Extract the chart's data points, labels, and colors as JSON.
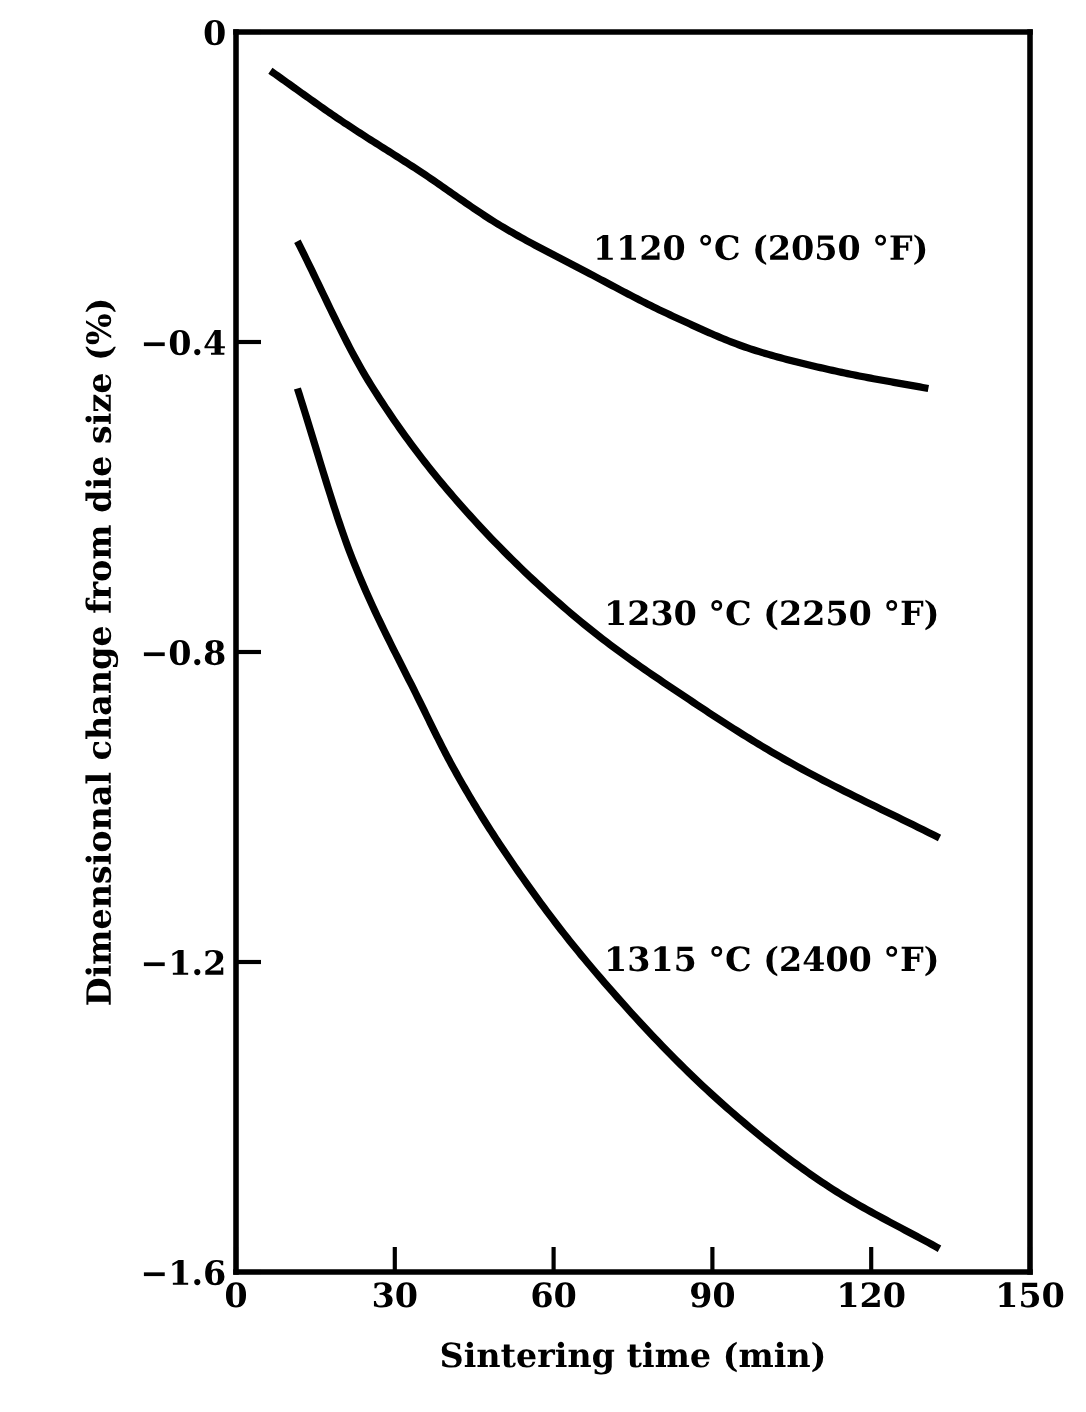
{
  "chart_data": {
    "type": "line",
    "xlabel": "Sintering time (min)",
    "ylabel": "Dimensional change from die size (%)",
    "xlim": [
      0,
      150
    ],
    "xticks": [
      0,
      30,
      60,
      90,
      120,
      150
    ],
    "ylim": [
      -1.6,
      0
    ],
    "yticks": [
      {
        "value": -1.6,
        "label": "−1.6"
      },
      {
        "value": -1.2,
        "label": "−1.2"
      },
      {
        "value": -0.8,
        "label": "−0.8"
      },
      {
        "value": -0.4,
        "label": "−0.4"
      },
      0
    ],
    "grid": false,
    "marker": "none",
    "line_style": "solid",
    "series": [
      {
        "name": "1120 °C (2050 °F)",
        "color": "#000000",
        "x": [
          6.5,
          20,
          34.8,
          50,
          66.3,
          82,
          97.7,
          115,
          130.8
        ],
        "values": [
          -0.05,
          -0.115,
          -0.18,
          -0.25,
          -0.31,
          -0.365,
          -0.41,
          -0.44,
          -0.46
        ]
      },
      {
        "name": "1230 °C (2250 °F)",
        "color": "#000000",
        "x": [
          11.6,
          25,
          41.1,
          65,
          86.4,
          104,
          132.9
        ],
        "values": [
          -0.27,
          -0.45,
          -0.6,
          -0.76,
          -0.865,
          -0.94,
          -1.04
        ]
      },
      {
        "name": "1315 °C (2400 °F)",
        "color": "#000000",
        "x": [
          11.6,
          22,
          34.8,
          41.1,
          50,
          66.3,
          91.4,
          112,
          132.9
        ],
        "values": [
          -0.46,
          -0.68,
          -0.865,
          -0.95,
          -1.05,
          -1.2,
          -1.38,
          -1.49,
          -1.57
        ]
      }
    ]
  }
}
